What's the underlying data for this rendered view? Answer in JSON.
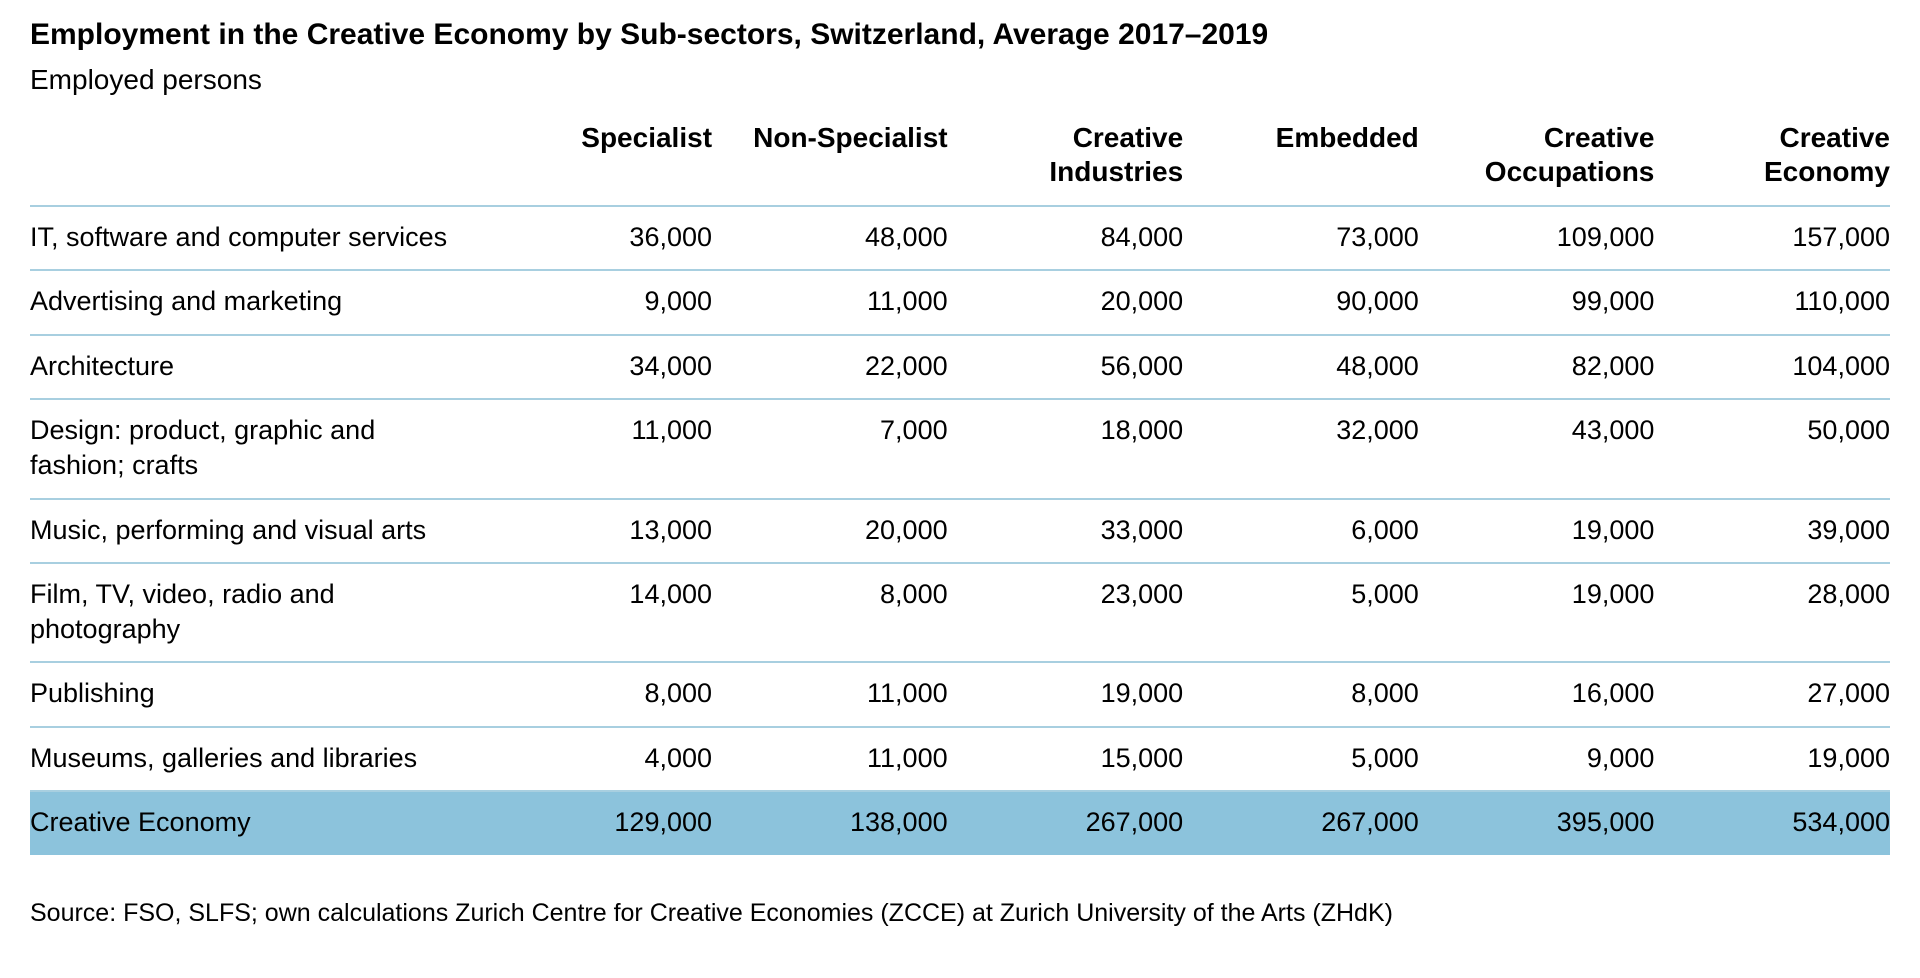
{
  "page": {
    "title": "Employment in the Creative Economy by Sub-sectors, Switzerland, Average 2017–2019",
    "subtitle": "Employed persons",
    "source": "Source: FSO, SLFS; own calculations Zurich Centre for Creative Economies (ZCCE) at Zurich University of the Arts (ZHdK)"
  },
  "colors": {
    "highlight_row_bg": "#8CC3DC",
    "row_border": "#A8CFE0",
    "text": "#000000",
    "background": "#FFFFFF"
  },
  "chart_data": {
    "type": "table",
    "title": "Employment in the Creative Economy by Sub-sectors, Switzerland, Average 2017–2019",
    "unit": "Employed persons",
    "columns": [
      "Specialist",
      "Non-Specialist",
      "Creative Industries",
      "Embedded",
      "Creative Occupations",
      "Creative Economy"
    ],
    "rows": [
      {
        "label": "IT, software and computer services",
        "values": [
          "36,000",
          "48,000",
          "84,000",
          "73,000",
          "109,000",
          "157,000"
        ]
      },
      {
        "label": "Advertising and marketing",
        "values": [
          "9,000",
          "11,000",
          "20,000",
          "90,000",
          "99,000",
          "110,000"
        ]
      },
      {
        "label": "Architecture",
        "values": [
          "34,000",
          "22,000",
          "56,000",
          "48,000",
          "82,000",
          "104,000"
        ]
      },
      {
        "label": "Design: product, graphic and fashion; crafts",
        "values": [
          "11,000",
          "7,000",
          "18,000",
          "32,000",
          "43,000",
          "50,000"
        ]
      },
      {
        "label": "Music, performing and visual arts",
        "values": [
          "13,000",
          "20,000",
          "33,000",
          "6,000",
          "19,000",
          "39,000"
        ]
      },
      {
        "label": "Film, TV, video, radio and photography",
        "values": [
          "14,000",
          "8,000",
          "23,000",
          "5,000",
          "19,000",
          "28,000"
        ]
      },
      {
        "label": "Publishing",
        "values": [
          "8,000",
          "11,000",
          "19,000",
          "8,000",
          "16,000",
          "27,000"
        ]
      },
      {
        "label": "Museums, galleries and libraries",
        "values": [
          "4,000",
          "11,000",
          "15,000",
          "5,000",
          "9,000",
          "19,000"
        ]
      }
    ],
    "total_row": {
      "label": "Creative Economy",
      "values": [
        "129,000",
        "138,000",
        "267,000",
        "267,000",
        "395,000",
        "534,000"
      ]
    }
  }
}
